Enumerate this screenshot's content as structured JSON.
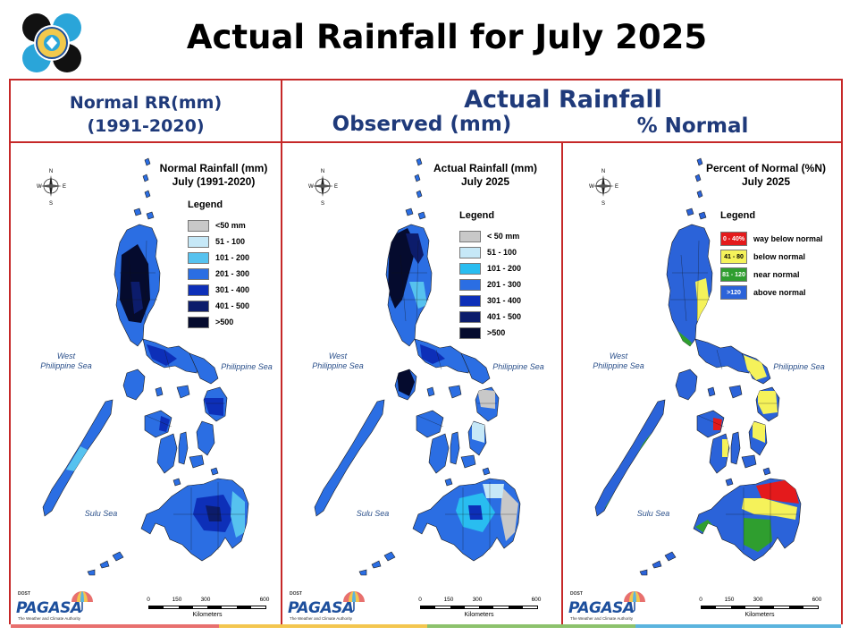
{
  "title": "Actual Rainfall for July 2025",
  "headers": {
    "normal_line1": "Normal RR(mm)",
    "normal_line2": "(1991-2020)",
    "actual": "Actual Rainfall",
    "observed": "Observed (mm)",
    "percent_normal": "% Normal"
  },
  "panels": [
    {
      "id": "normal",
      "title_line1": "Normal Rainfall (mm)",
      "title_line2": "July (1991-2020)",
      "legend_title": "Legend",
      "legend": [
        {
          "label": "<50 mm",
          "color": "#c8c8c8"
        },
        {
          "label": "51 - 100",
          "color": "#c6e8f7"
        },
        {
          "label": "101 - 200",
          "color": "#56c2ef"
        },
        {
          "label": "201 - 300",
          "color": "#2b6ee3"
        },
        {
          "label": "301 - 400",
          "color": "#0d2fb8"
        },
        {
          "label": "401 - 500",
          "color": "#0c1c6b"
        },
        {
          "label": ">500",
          "color": "#050b2e"
        }
      ]
    },
    {
      "id": "actual",
      "title_line1": "Actual Rainfall (mm)",
      "title_line2": "July 2025",
      "legend_title": "Legend",
      "legend": [
        {
          "label": "< 50 mm",
          "color": "#c8c8c8"
        },
        {
          "label": "51 - 100",
          "color": "#c6e8f7"
        },
        {
          "label": "101 - 200",
          "color": "#29bdf0"
        },
        {
          "label": "201 - 300",
          "color": "#2b6ee3"
        },
        {
          "label": "301 - 400",
          "color": "#0d2fb8"
        },
        {
          "label": "401 - 500",
          "color": "#0c1c6b"
        },
        {
          "label": ">500",
          "color": "#050b2e"
        }
      ]
    },
    {
      "id": "percent",
      "title_line1": "Percent of Normal (%N)",
      "title_line2": "July 2025",
      "legend_title": "Legend",
      "legend": [
        {
          "range": "0 - 40%",
          "label": "way below normal",
          "color": "#e41a1c"
        },
        {
          "range": "41 - 80",
          "label": "below normal",
          "color": "#f5f25a"
        },
        {
          "range": "81 - 120",
          "label": "near normal",
          "color": "#2f9e2f"
        },
        {
          "range": ">120",
          "label": "above normal",
          "color": "#2b63d9"
        }
      ]
    }
  ],
  "seas": {
    "west": "West\nPhilippine Sea",
    "east": "Philippine Sea",
    "sulu": "Sulu Sea"
  },
  "scale": {
    "ticks": [
      "0",
      "150",
      "300",
      "600"
    ],
    "unit": "Kilometers"
  },
  "compass": {
    "n": "N",
    "s": "S",
    "e": "E",
    "w": "W"
  },
  "logo": {
    "word": "PAGASA",
    "dost": "DOST",
    "tagline": "The Weather and Climate Authority"
  },
  "stripe_colors": [
    "#e8706e",
    "#f3c64f",
    "#8cc26c",
    "#5bb4de"
  ]
}
